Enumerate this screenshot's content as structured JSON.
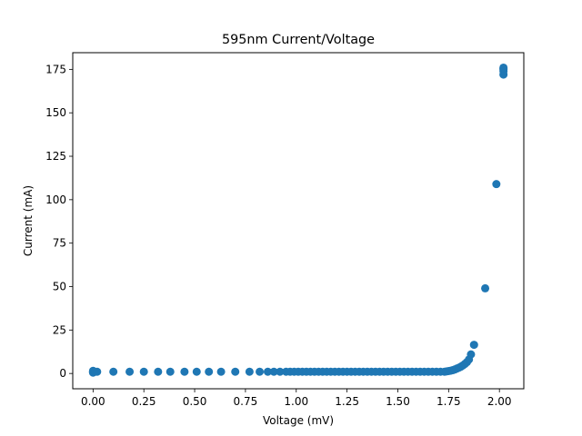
{
  "chart_data": {
    "type": "scatter",
    "title": "595nm Current/Voltage",
    "xlabel": "Voltage (mV)",
    "ylabel": "Current (mA)",
    "xlim": [
      -0.1,
      2.12
    ],
    "ylim": [
      -8.8,
      184.6
    ],
    "xticks": [
      "0.00",
      "0.25",
      "0.50",
      "0.75",
      "1.00",
      "1.25",
      "1.50",
      "1.75",
      "2.00"
    ],
    "yticks": [
      "0",
      "25",
      "50",
      "75",
      "100",
      "125",
      "150",
      "175"
    ],
    "grid": false,
    "marker_color": "#1f77b4",
    "series": [
      {
        "x": [
          0.0,
          0.0,
          0.0,
          0.0,
          0.01,
          0.02,
          0.1,
          0.18,
          0.25,
          0.32,
          0.38,
          0.45,
          0.51,
          0.57,
          0.63,
          0.7,
          0.77,
          0.82,
          0.86,
          0.89,
          0.92,
          0.95,
          0.97,
          0.99,
          1.01,
          1.03,
          1.05,
          1.07,
          1.09,
          1.11,
          1.13,
          1.15,
          1.17,
          1.19,
          1.21,
          1.23,
          1.25,
          1.27,
          1.29,
          1.31,
          1.33,
          1.35,
          1.37,
          1.39,
          1.41,
          1.43,
          1.45,
          1.47,
          1.49,
          1.51,
          1.53,
          1.55,
          1.57,
          1.59,
          1.61,
          1.63,
          1.65,
          1.67,
          1.69,
          1.71,
          1.73,
          1.74,
          1.75,
          1.76,
          1.77,
          1.78,
          1.79,
          1.8,
          1.81,
          1.82,
          1.83,
          1.84,
          1.85,
          1.86,
          1.875,
          1.93,
          1.985,
          2.02,
          2.02,
          2.02,
          2.02,
          2.02
        ],
        "y": [
          1,
          0.5,
          1.5,
          1,
          1,
          1,
          1,
          1,
          1,
          1,
          1,
          1,
          1,
          1,
          1,
          1,
          1,
          1,
          1,
          1,
          1,
          1,
          1,
          1,
          1,
          1,
          1,
          1,
          1,
          1,
          1,
          1,
          1,
          1,
          1,
          1,
          1,
          1,
          1,
          1,
          1,
          1,
          1,
          1,
          1,
          1,
          1,
          1,
          1,
          1,
          1,
          1,
          1,
          1,
          1,
          1,
          1,
          1,
          1,
          1,
          1,
          1.2,
          1.4,
          1.6,
          1.9,
          2.3,
          2.8,
          3.3,
          3.9,
          4.6,
          5.5,
          6.5,
          8,
          11,
          16.5,
          49,
          109,
          172,
          174,
          175,
          175.5,
          176
        ]
      }
    ]
  }
}
